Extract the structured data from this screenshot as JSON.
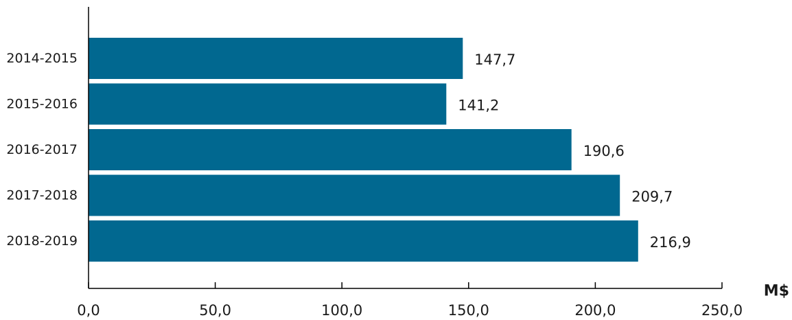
{
  "chart_data": {
    "type": "bar",
    "orientation": "horizontal",
    "title": "",
    "xlabel": "M$",
    "ylabel": "",
    "categories": [
      "2014-2015",
      "2015-2016",
      "2016-2017",
      "2017-2018",
      "2018-2019"
    ],
    "values": [
      147.7,
      141.2,
      190.6,
      209.7,
      216.9
    ],
    "value_labels": [
      "147,7",
      "141,2",
      "190,6",
      "209,7",
      "216,9"
    ],
    "xlim": [
      0,
      250
    ],
    "x_ticks": [
      0,
      50,
      100,
      150,
      200,
      250
    ],
    "x_tick_labels": [
      "0,0",
      "50,0",
      "100,0",
      "150,0",
      "200,0",
      "250,0"
    ],
    "bar_color": "#016890",
    "grid": false,
    "legend": "none"
  }
}
